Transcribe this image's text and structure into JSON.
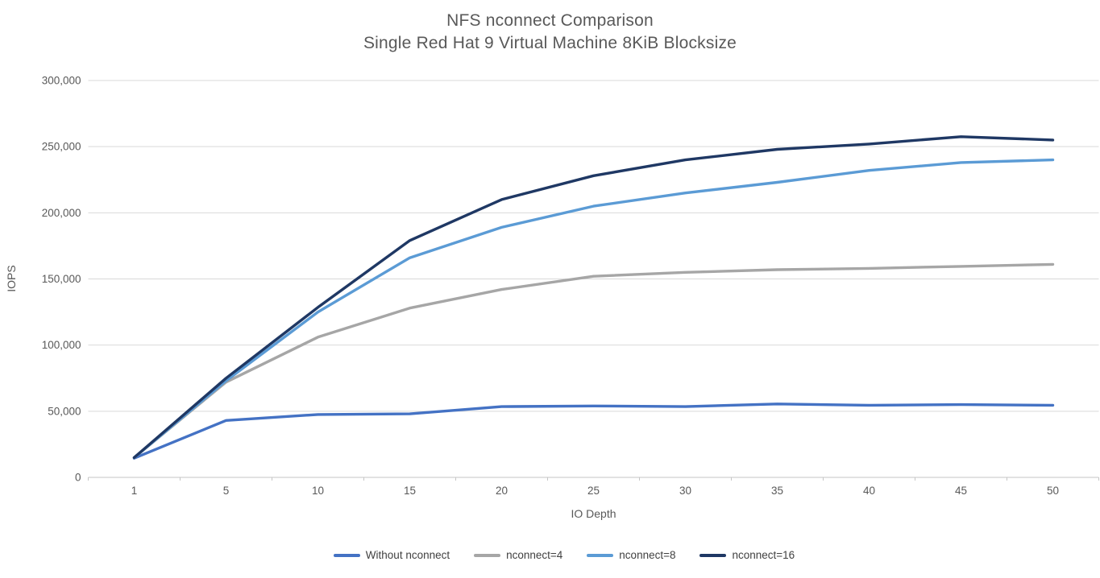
{
  "chart_data": {
    "type": "line",
    "title": "NFS nconnect Comparison",
    "subtitle": "Single Red Hat 9 Virtual Machine 8KiB Blocksize",
    "xlabel": "IO Depth",
    "ylabel": "IOPS",
    "categories": [
      "1",
      "5",
      "10",
      "15",
      "20",
      "25",
      "30",
      "35",
      "40",
      "45",
      "50"
    ],
    "ylim": [
      0,
      300000
    ],
    "ytick_step": 50000,
    "ytick_labels": [
      "0",
      "50,000",
      "100,000",
      "150,000",
      "200,000",
      "250,000",
      "300,000"
    ],
    "grid": true,
    "legend_position": "bottom",
    "series": [
      {
        "name": "Without nconnect",
        "color": "#4472C4",
        "values": [
          14500,
          43000,
          47500,
          48000,
          53500,
          54000,
          53500,
          55500,
          54500,
          55000,
          54500
        ]
      },
      {
        "name": "nconnect=4",
        "color": "#A6A6A6",
        "values": [
          15000,
          72000,
          106000,
          128000,
          142000,
          152000,
          155000,
          157000,
          158000,
          159500,
          161000
        ]
      },
      {
        "name": "nconnect=8",
        "color": "#5B9BD5",
        "values": [
          15000,
          73000,
          125000,
          166000,
          189000,
          205000,
          215000,
          223000,
          232000,
          238000,
          240000
        ]
      },
      {
        "name": "nconnect=16",
        "color": "#1F3864",
        "values": [
          15000,
          75000,
          128500,
          179000,
          210000,
          228000,
          240000,
          248000,
          252000,
          257500,
          255000
        ]
      }
    ],
    "colors": {
      "title_text": "#595959",
      "axis_text": "#595959",
      "legend_text": "#404040",
      "gridline": "#D9D9D9",
      "axis_line": "#C6C6C6",
      "background": "#FFFFFF"
    }
  }
}
